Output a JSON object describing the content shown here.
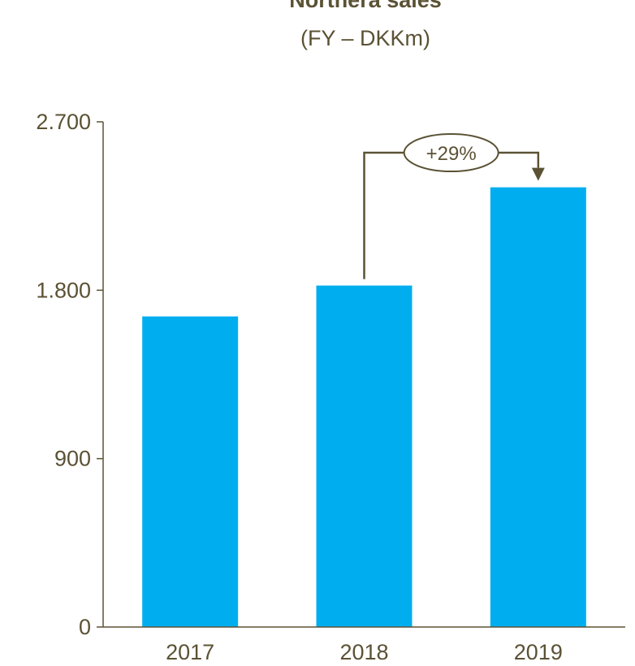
{
  "chart_data": {
    "type": "bar",
    "title": "Northera sales",
    "subtitle": "(FY – DKKm)",
    "categories": [
      "2017",
      "2018",
      "2019"
    ],
    "values": [
      1660,
      1825,
      2350
    ],
    "ylim": [
      0,
      2700
    ],
    "yticks": [
      0,
      900,
      1800,
      2700
    ],
    "ytick_labels": [
      "0",
      "900",
      "1.800",
      "2.700"
    ],
    "grid": false,
    "legend": "none",
    "annotation": {
      "from": "2018",
      "to": "2019",
      "label": "+29%"
    },
    "colors": {
      "bar": "#00AEEF",
      "text": "#5B5235",
      "axis": "#5B5235"
    }
  }
}
